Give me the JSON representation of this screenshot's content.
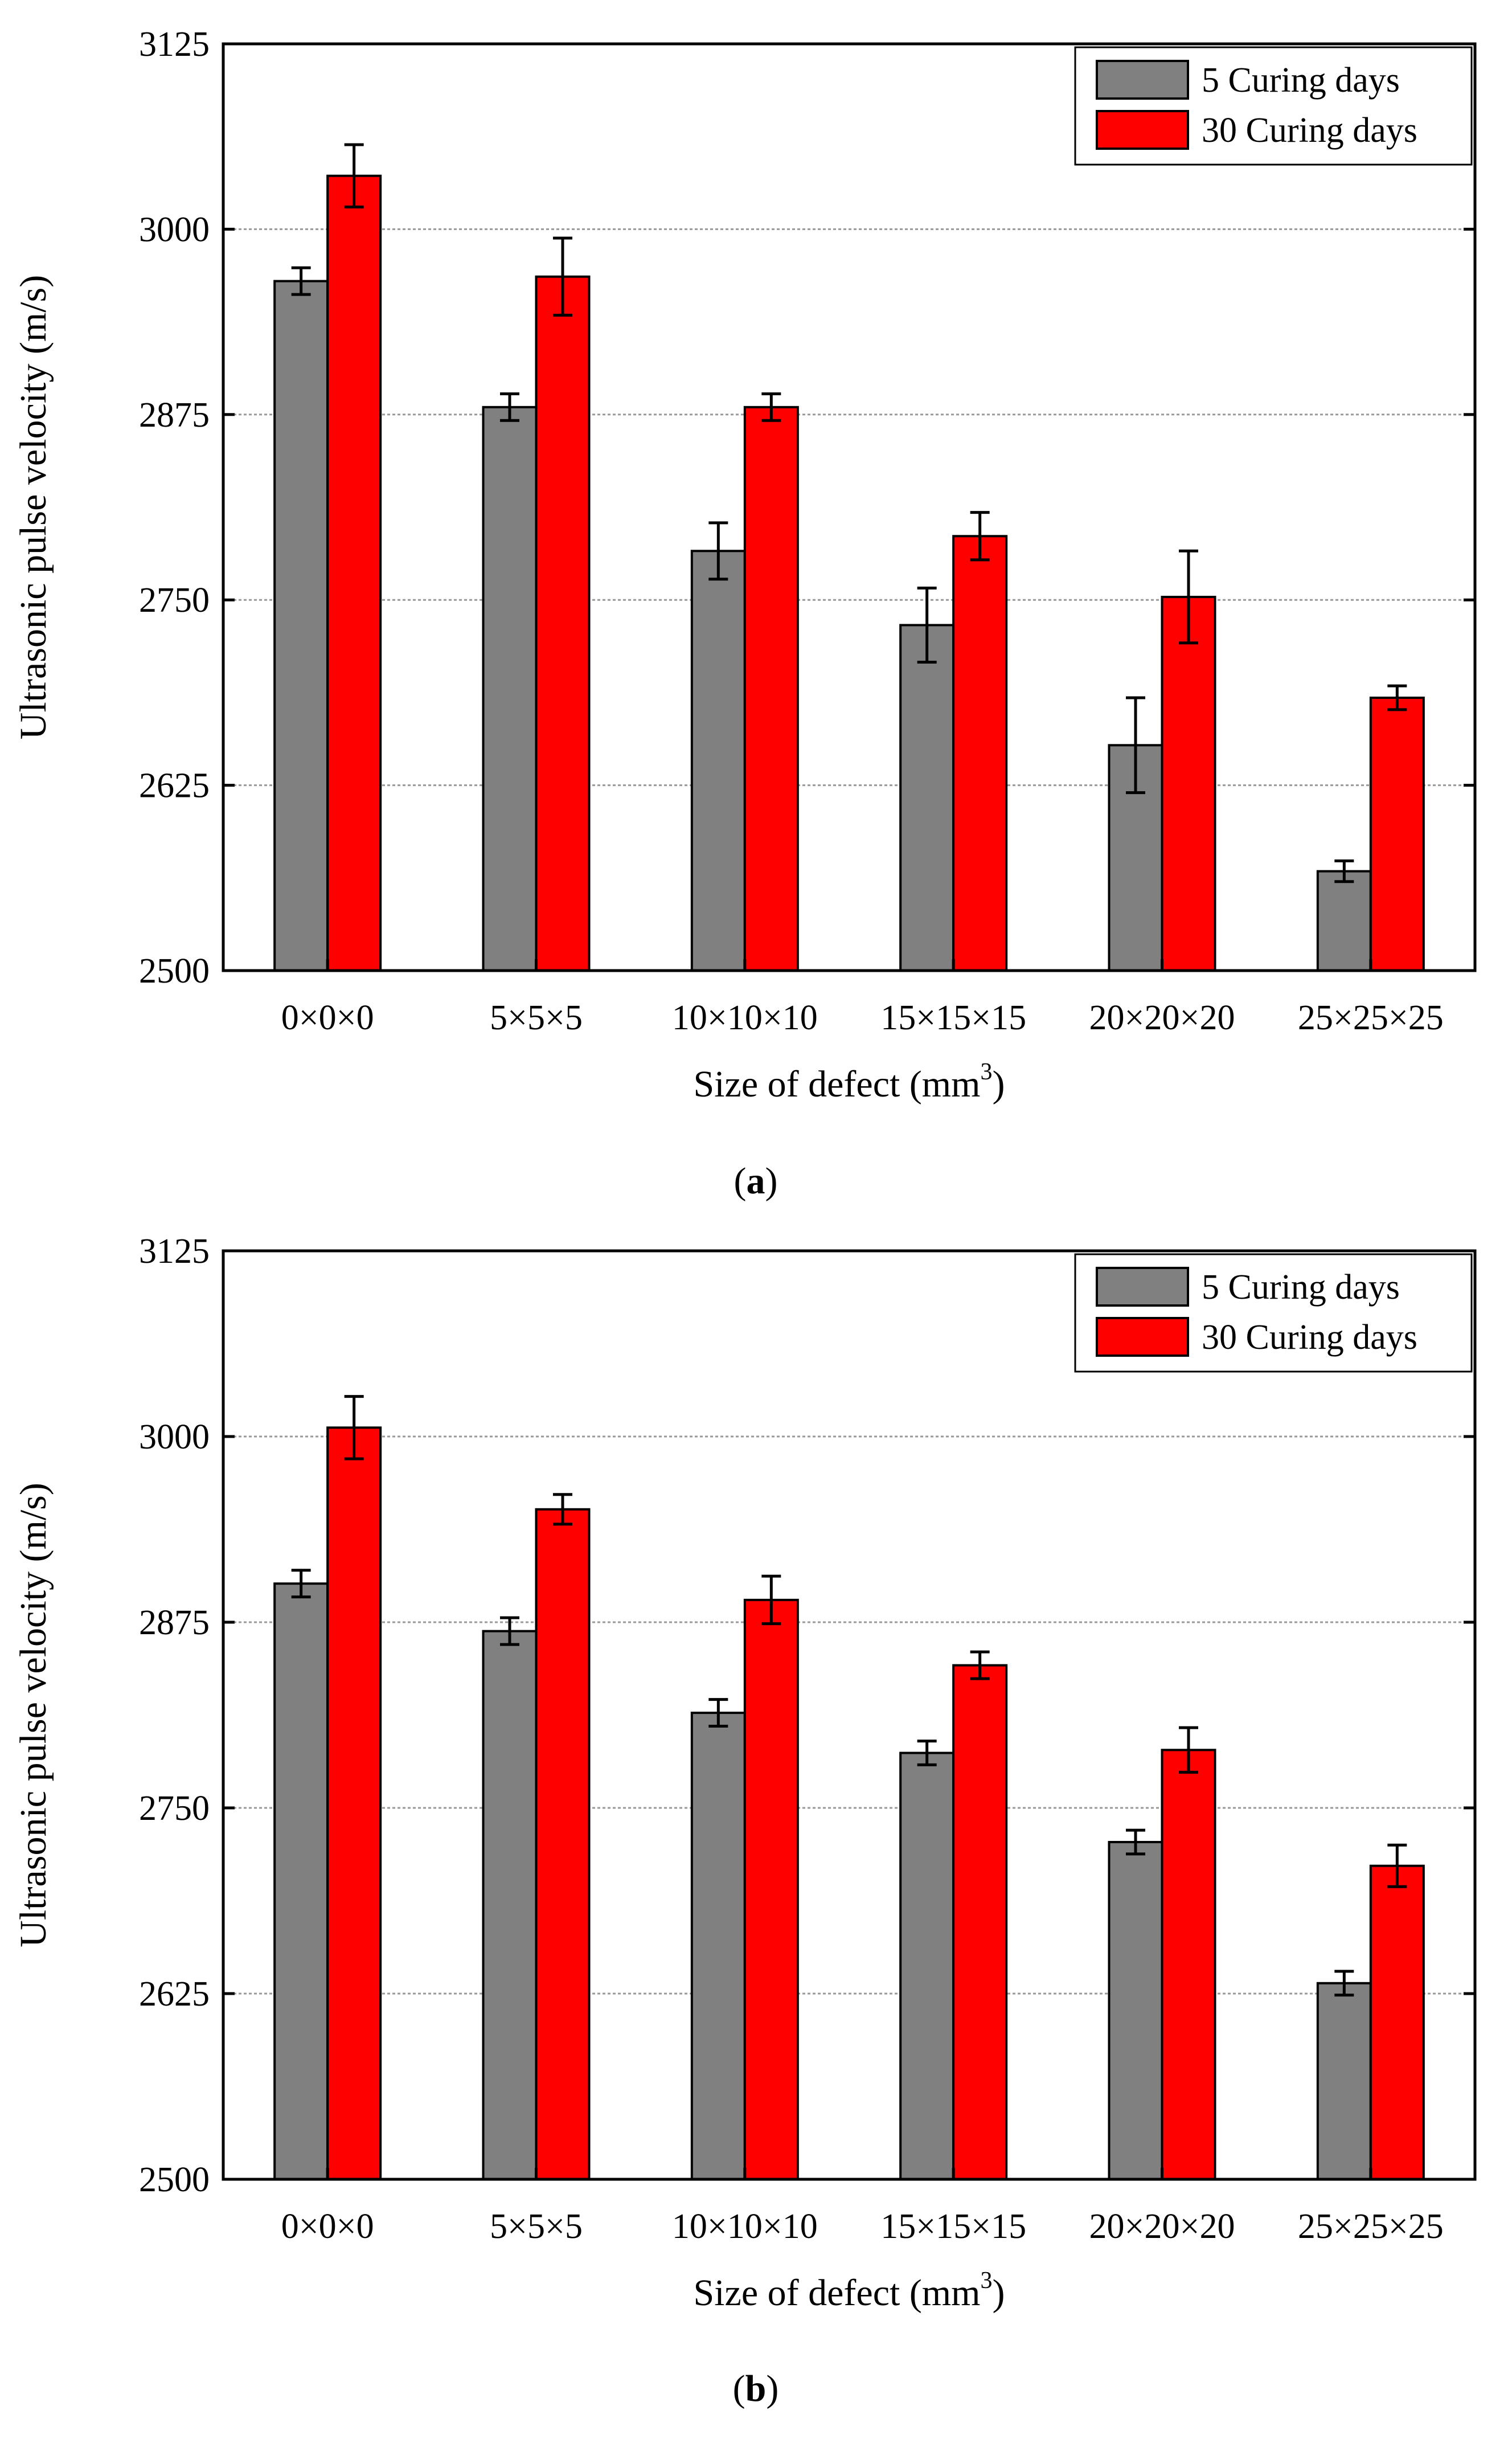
{
  "colors": {
    "series_5": "#808080",
    "series_30": "#ff0000",
    "grid": "#999999",
    "axis": "#000000"
  },
  "chart_data": [
    {
      "type": "bar",
      "panel": "(a)",
      "panel_letter": "a",
      "categories": [
        "0×0×0",
        "5×5×5",
        "10×10×10",
        "15×15×15",
        "20×20×20",
        "25×25×25"
      ],
      "series": [
        {
          "name": "5 Curing days",
          "values": [
            2965,
            2880,
            2783,
            2733,
            2652,
            2567
          ],
          "errors": [
            9,
            9,
            19,
            25,
            32,
            7
          ]
        },
        {
          "name": "30 Curing days",
          "values": [
            3036,
            2968,
            2880,
            2793,
            2752,
            2684
          ],
          "errors": [
            21,
            26,
            9,
            16,
            31,
            8
          ]
        }
      ],
      "xlabel": "Size of defect (mm",
      "xlabel_sup": "3",
      "xlabel_end": ")",
      "ylabel": "Ultrasonic pulse velocity (m/s)",
      "ylim": [
        2500,
        3125
      ],
      "yticks": [
        "2500",
        "2625",
        "2750",
        "2875",
        "3000",
        "3125"
      ],
      "grid": true,
      "legend_position": "top-right"
    },
    {
      "type": "bar",
      "panel": "(b)",
      "panel_letter": "b",
      "categories": [
        "0×0×0",
        "5×5×5",
        "10×10×10",
        "15×15×15",
        "20×20×20",
        "25×25×25"
      ],
      "series": [
        {
          "name": "5 Curing days",
          "values": [
            2901,
            2869,
            2814,
            2787,
            2727,
            2632
          ],
          "errors": [
            9,
            9,
            9,
            8,
            8,
            8
          ]
        },
        {
          "name": "30 Curing days",
          "values": [
            3006,
            2951,
            2890,
            2846,
            2789,
            2711
          ],
          "errors": [
            21,
            10,
            16,
            9,
            15,
            14
          ]
        }
      ],
      "xlabel": "Size of defect (mm",
      "xlabel_sup": "3",
      "xlabel_end": ")",
      "ylabel": "Ultrasonic pulse velocity (m/s)",
      "ylim": [
        2500,
        3125
      ],
      "yticks": [
        "2500",
        "2625",
        "2750",
        "2875",
        "3000",
        "3125"
      ],
      "grid": true,
      "legend_position": "top-right"
    }
  ]
}
